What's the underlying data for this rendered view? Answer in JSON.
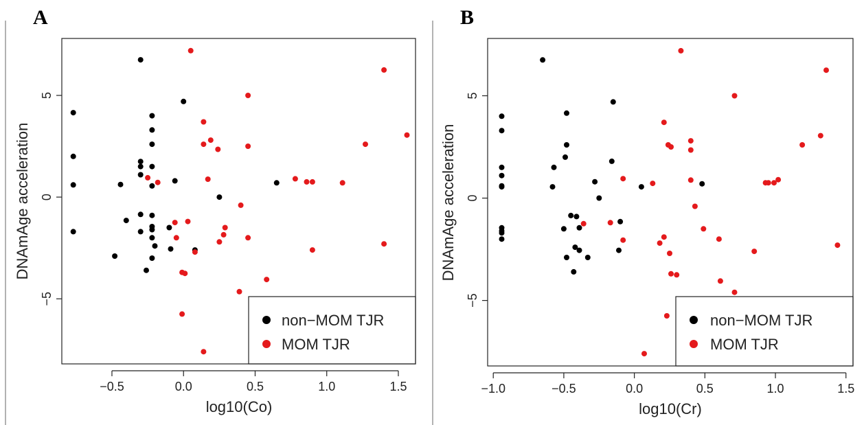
{
  "chart_data": [
    {
      "panel_label": "A",
      "type": "scatter",
      "xlabel": "log10(Co)",
      "ylabel": "DNAmAge acceleration",
      "xlim": [
        -0.85,
        1.62
      ],
      "ylim": [
        -8.2,
        7.8
      ],
      "xticks": [
        -0.5,
        0.0,
        0.5,
        1.0,
        1.5
      ],
      "xtick_labels": [
        "−0.5",
        "0.0",
        "0.5",
        "1.0",
        "1.5"
      ],
      "yticks": [
        -5,
        0,
        5
      ],
      "ytick_labels": [
        "−5",
        "0",
        "5"
      ],
      "legend": {
        "placement": "bottom-right",
        "entries": [
          "non−MOM TJR",
          "MOM TJR"
        ]
      },
      "series": [
        {
          "name": "non−MOM TJR",
          "color": "#000000",
          "points": [
            [
              -0.77,
              4.15
            ],
            [
              -0.77,
              2.0
            ],
            [
              -0.77,
              0.6
            ],
            [
              -0.77,
              -1.7
            ],
            [
              -0.3,
              6.75
            ],
            [
              -0.3,
              1.75
            ],
            [
              -0.3,
              1.5
            ],
            [
              -0.3,
              1.1
            ],
            [
              -0.3,
              -0.85
            ],
            [
              -0.3,
              -1.7
            ],
            [
              -0.44,
              0.62
            ],
            [
              -0.4,
              -1.15
            ],
            [
              -0.48,
              -2.9
            ],
            [
              -0.26,
              -3.6
            ],
            [
              -0.22,
              4.0
            ],
            [
              -0.22,
              3.3
            ],
            [
              -0.22,
              2.6
            ],
            [
              -0.22,
              1.5
            ],
            [
              -0.22,
              0.55
            ],
            [
              -0.22,
              -0.9
            ],
            [
              -0.22,
              -1.45
            ],
            [
              -0.22,
              -1.6
            ],
            [
              -0.22,
              -2.0
            ],
            [
              -0.22,
              -3.0
            ],
            [
              -0.2,
              -2.4
            ],
            [
              -0.1,
              -1.5
            ],
            [
              -0.09,
              -2.55
            ],
            [
              -0.06,
              0.8
            ],
            [
              0.0,
              4.7
            ],
            [
              0.08,
              -2.6
            ],
            [
              0.25,
              0.0
            ],
            [
              0.65,
              0.7
            ]
          ]
        },
        {
          "name": "MOM TJR",
          "color": "#e41a1c",
          "points": [
            [
              0.05,
              7.2
            ],
            [
              1.4,
              6.25
            ],
            [
              0.45,
              5.0
            ],
            [
              0.14,
              3.7
            ],
            [
              0.19,
              2.8
            ],
            [
              0.14,
              2.6
            ],
            [
              0.24,
              2.35
            ],
            [
              0.45,
              2.5
            ],
            [
              1.27,
              2.6
            ],
            [
              1.56,
              3.05
            ],
            [
              -0.25,
              0.95
            ],
            [
              -0.18,
              0.72
            ],
            [
              0.17,
              0.88
            ],
            [
              0.78,
              0.9
            ],
            [
              0.86,
              0.75
            ],
            [
              0.9,
              0.75
            ],
            [
              1.11,
              0.7
            ],
            [
              0.4,
              -0.4
            ],
            [
              -0.06,
              -1.25
            ],
            [
              0.03,
              -1.2
            ],
            [
              0.29,
              -1.5
            ],
            [
              0.28,
              -1.85
            ],
            [
              -0.05,
              -2.0
            ],
            [
              0.25,
              -2.2
            ],
            [
              0.45,
              -2.0
            ],
            [
              0.08,
              -2.7
            ],
            [
              0.9,
              -2.6
            ],
            [
              1.4,
              -2.3
            ],
            [
              -0.01,
              -3.7
            ],
            [
              0.01,
              -3.75
            ],
            [
              0.58,
              -4.05
            ],
            [
              0.39,
              -4.65
            ],
            [
              -0.01,
              -5.75
            ],
            [
              0.14,
              -7.6
            ]
          ]
        }
      ]
    },
    {
      "panel_label": "B",
      "type": "scatter",
      "xlabel": "log10(Cr)",
      "ylabel": "DNAmAge acceleration",
      "xlim": [
        -1.04,
        1.55
      ],
      "ylim": [
        -8.2,
        7.8
      ],
      "xticks": [
        -1.0,
        -0.5,
        0.0,
        0.5,
        1.0,
        1.5
      ],
      "xtick_labels": [
        "−1.0",
        "−0.5",
        "0.0",
        "0.5",
        "1.0",
        "1.5"
      ],
      "yticks": [
        -5,
        0,
        5
      ],
      "ytick_labels": [
        "−5",
        "0",
        "5"
      ],
      "legend": {
        "placement": "bottom-right",
        "entries": [
          "non−MOM TJR",
          "MOM TJR"
        ]
      },
      "series": [
        {
          "name": "non−MOM TJR",
          "color": "#000000",
          "points": [
            [
              -0.65,
              6.75
            ],
            [
              -0.94,
              4.0
            ],
            [
              -0.94,
              3.3
            ],
            [
              -0.94,
              1.5
            ],
            [
              -0.94,
              1.1
            ],
            [
              -0.94,
              0.6
            ],
            [
              -0.94,
              0.55
            ],
            [
              -0.94,
              -1.45
            ],
            [
              -0.94,
              -1.6
            ],
            [
              -0.94,
              -1.7
            ],
            [
              -0.94,
              -2.0
            ],
            [
              -0.48,
              4.15
            ],
            [
              -0.48,
              2.6
            ],
            [
              -0.49,
              2.0
            ],
            [
              -0.57,
              1.5
            ],
            [
              -0.58,
              0.55
            ],
            [
              -0.15,
              4.7
            ],
            [
              -0.16,
              1.8
            ],
            [
              -0.28,
              0.8
            ],
            [
              -0.25,
              0.0
            ],
            [
              -0.45,
              -0.85
            ],
            [
              -0.41,
              -0.9
            ],
            [
              -0.39,
              -1.45
            ],
            [
              -0.5,
              -1.5
            ],
            [
              -0.1,
              -1.15
            ],
            [
              -0.11,
              -2.55
            ],
            [
              -0.42,
              -2.4
            ],
            [
              -0.39,
              -2.55
            ],
            [
              -0.48,
              -2.9
            ],
            [
              -0.33,
              -2.9
            ],
            [
              -0.43,
              -3.6
            ],
            [
              0.05,
              0.55
            ],
            [
              0.48,
              0.7
            ]
          ]
        },
        {
          "name": "MOM TJR",
          "color": "#e41a1c",
          "points": [
            [
              0.33,
              7.2
            ],
            [
              1.36,
              6.25
            ],
            [
              0.71,
              5.0
            ],
            [
              0.21,
              3.7
            ],
            [
              0.24,
              2.6
            ],
            [
              0.26,
              2.5
            ],
            [
              0.4,
              2.8
            ],
            [
              0.4,
              2.35
            ],
            [
              1.19,
              2.6
            ],
            [
              1.32,
              3.05
            ],
            [
              -0.08,
              0.95
            ],
            [
              0.13,
              0.72
            ],
            [
              0.4,
              0.88
            ],
            [
              0.93,
              0.75
            ],
            [
              0.95,
              0.75
            ],
            [
              0.99,
              0.75
            ],
            [
              1.02,
              0.9
            ],
            [
              0.43,
              -0.4
            ],
            [
              -0.36,
              -1.25
            ],
            [
              -0.17,
              -1.2
            ],
            [
              0.49,
              -1.5
            ],
            [
              0.21,
              -1.9
            ],
            [
              -0.08,
              -2.05
            ],
            [
              0.18,
              -2.2
            ],
            [
              0.6,
              -2.0
            ],
            [
              0.25,
              -2.7
            ],
            [
              0.85,
              -2.6
            ],
            [
              1.44,
              -2.3
            ],
            [
              0.26,
              -3.7
            ],
            [
              0.3,
              -3.75
            ],
            [
              0.61,
              -4.05
            ],
            [
              0.71,
              -4.6
            ],
            [
              0.23,
              -5.75
            ],
            [
              0.07,
              -7.6
            ]
          ]
        }
      ]
    }
  ]
}
